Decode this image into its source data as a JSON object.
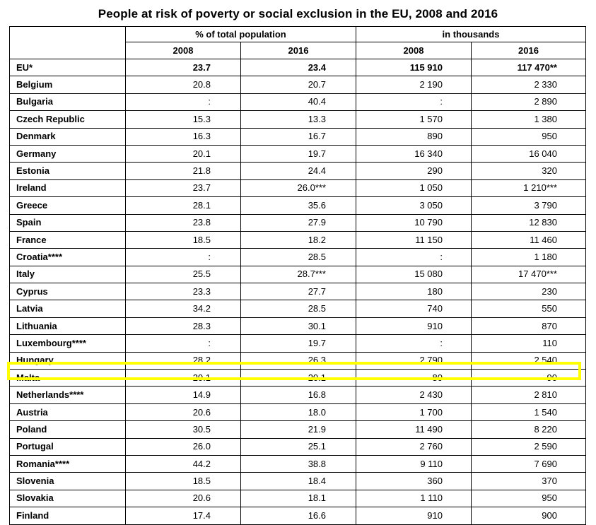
{
  "title": "People at risk of poverty or social exclusion in the EU, 2008 and 2016",
  "headers": {
    "pct_group": "% of total population",
    "thousands_group": "in thousands",
    "years": [
      "2008",
      "2016",
      "2008",
      "2016"
    ]
  },
  "rows": [
    {
      "country": "EU*",
      "p2008": "23.7",
      "p2016": "23.4",
      "t2008": "115 910",
      "t2016": "117 470**"
    },
    {
      "country": "Belgium",
      "p2008": "20.8",
      "p2016": "20.7",
      "t2008": "2 190",
      "t2016": "2 330"
    },
    {
      "country": "Bulgaria",
      "p2008": ":",
      "p2016": "40.4",
      "t2008": ":",
      "t2016": "2 890"
    },
    {
      "country": "Czech Republic",
      "p2008": "15.3",
      "p2016": "13.3",
      "t2008": "1 570",
      "t2016": "1 380"
    },
    {
      "country": "Denmark",
      "p2008": "16.3",
      "p2016": "16.7",
      "t2008": "890",
      "t2016": "950"
    },
    {
      "country": "Germany",
      "p2008": "20.1",
      "p2016": "19.7",
      "t2008": "16 340",
      "t2016": "16 040"
    },
    {
      "country": "Estonia",
      "p2008": "21.8",
      "p2016": "24.4",
      "t2008": "290",
      "t2016": "320"
    },
    {
      "country": "Ireland",
      "p2008": "23.7",
      "p2016": "26.0***",
      "t2008": "1 050",
      "t2016": "1 210***"
    },
    {
      "country": "Greece",
      "p2008": "28.1",
      "p2016": "35.6",
      "t2008": "3 050",
      "t2016": "3 790"
    },
    {
      "country": "Spain",
      "p2008": "23.8",
      "p2016": "27.9",
      "t2008": "10 790",
      "t2016": "12 830"
    },
    {
      "country": "France",
      "p2008": "18.5",
      "p2016": "18.2",
      "t2008": "11 150",
      "t2016": "11 460"
    },
    {
      "country": "Croatia****",
      "p2008": ":",
      "p2016": "28.5",
      "t2008": ":",
      "t2016": "1 180"
    },
    {
      "country": "Italy",
      "p2008": "25.5",
      "p2016": "28.7***",
      "t2008": "15 080",
      "t2016": "17 470***"
    },
    {
      "country": "Cyprus",
      "p2008": "23.3",
      "p2016": "27.7",
      "t2008": "180",
      "t2016": "230"
    },
    {
      "country": "Latvia",
      "p2008": "34.2",
      "p2016": "28.5",
      "t2008": "740",
      "t2016": "550"
    },
    {
      "country": "Lithuania",
      "p2008": "28.3",
      "p2016": "30.1",
      "t2008": "910",
      "t2016": "870"
    },
    {
      "country": "Luxembourg****",
      "p2008": ":",
      "p2016": "19.7",
      "t2008": ":",
      "t2016": "110"
    },
    {
      "country": "Hungary",
      "p2008": "28.2",
      "p2016": "26.3",
      "t2008": "2 790",
      "t2016": "2 540"
    },
    {
      "country": "Malta",
      "p2008": "20.1",
      "p2016": "20.1",
      "t2008": "80",
      "t2016": "90"
    },
    {
      "country": "Netherlands****",
      "p2008": "14.9",
      "p2016": "16.8",
      "t2008": "2 430",
      "t2016": "2 810"
    },
    {
      "country": "Austria",
      "p2008": "20.6",
      "p2016": "18.0",
      "t2008": "1 700",
      "t2016": "1 540"
    },
    {
      "country": "Poland",
      "p2008": "30.5",
      "p2016": "21.9",
      "t2008": "11 490",
      "t2016": "8 220"
    },
    {
      "country": "Portugal",
      "p2008": "26.0",
      "p2016": "25.1",
      "t2008": "2 760",
      "t2016": "2 590"
    },
    {
      "country": "Romania****",
      "p2008": "44.2",
      "p2016": "38.8",
      "t2008": "9 110",
      "t2016": "7 690"
    },
    {
      "country": "Slovenia",
      "p2008": "18.5",
      "p2016": "18.4",
      "t2008": "360",
      "t2016": "370"
    },
    {
      "country": "Slovakia",
      "p2008": "20.6",
      "p2016": "18.1",
      "t2008": "1 110",
      "t2016": "950"
    },
    {
      "country": "Finland",
      "p2008": "17.4",
      "p2016": "16.6",
      "t2008": "910",
      "t2016": "900"
    }
  ],
  "highlighted_country": "Malta",
  "colors": {
    "highlight": "#ffff00",
    "text": "#000000",
    "border": "#000000"
  }
}
